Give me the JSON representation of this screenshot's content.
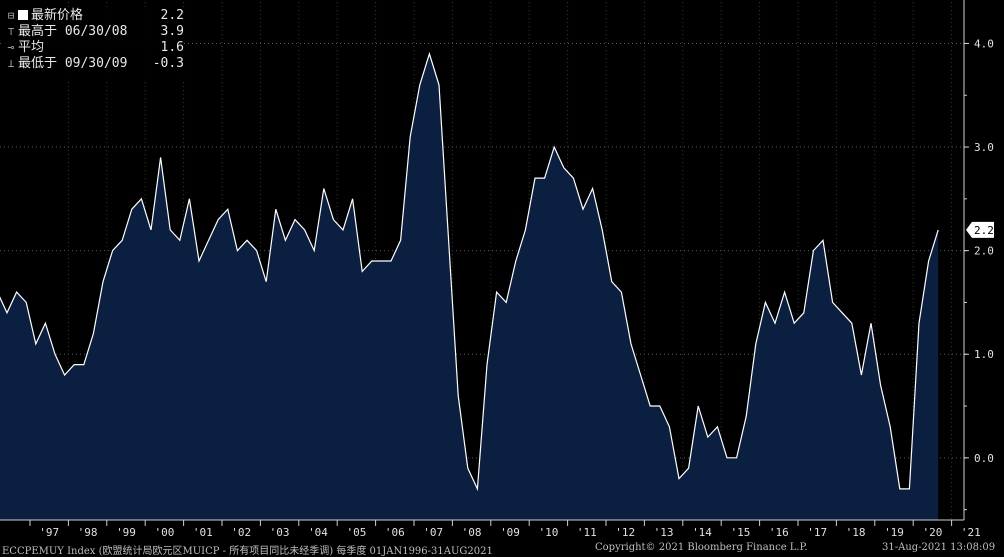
{
  "legend": {
    "last_price_label": "最新价格",
    "last_price_value": "2.2",
    "high_label": "最高于 06/30/08",
    "high_value": "3.9",
    "average_label": "平均",
    "average_value": "1.6",
    "low_label": "最低于 09/30/09",
    "low_value": "-0.3"
  },
  "footer": {
    "ticker": "ECCPEMUY Index (欧盟统计局欧元区MUICP - 所有项目同比未经季调)  每季度 01JAN1996-31AUG2021",
    "copyright": "Copyright© 2021 Bloomberg Finance L.P.",
    "timestamp": "31-Aug-2021 13:08:09"
  },
  "chart_data": {
    "type": "area",
    "series": [
      {
        "values": [
          1.6,
          1.4,
          1.6,
          1.5,
          1.1,
          1.3,
          1.0,
          0.8,
          0.9,
          0.9,
          1.2,
          1.7,
          2.0,
          2.1,
          2.4,
          2.5,
          2.2,
          2.9,
          2.2,
          2.1,
          2.5,
          1.9,
          2.1,
          2.3,
          2.4,
          2.0,
          2.1,
          2.0,
          1.7,
          2.4,
          2.1,
          2.3,
          2.2,
          2.0,
          2.6,
          2.3,
          2.2,
          2.5,
          1.8,
          1.9,
          1.9,
          1.9,
          2.1,
          3.1,
          3.6,
          3.9,
          3.6,
          2.1,
          0.6,
          -0.1,
          -0.3,
          0.9,
          1.6,
          1.5,
          1.9,
          2.2,
          2.7,
          2.7,
          3.0,
          2.8,
          2.7,
          2.4,
          2.6,
          2.2,
          1.7,
          1.6,
          1.1,
          0.8,
          0.5,
          0.5,
          0.3,
          -0.2,
          -0.1,
          0.5,
          0.2,
          0.3,
          0.0,
          0.0,
          0.4,
          1.1,
          1.5,
          1.3,
          1.6,
          1.3,
          1.4,
          2.0,
          2.1,
          1.5,
          1.4,
          1.3,
          0.8,
          1.3,
          0.7,
          0.3,
          -0.3,
          -0.3,
          1.3,
          1.9,
          2.2
        ],
        "color": "#ffffff",
        "fill": "#0b2040"
      }
    ],
    "x_start_year": 1996,
    "x_end_year": 2021,
    "ylim": [
      -0.6,
      4.4
    ],
    "yticks": [
      "4.0",
      "3.0",
      "2.0",
      "1.0",
      "0.0"
    ],
    "ytick_values": [
      4.0,
      3.0,
      2.0,
      1.0,
      0.0
    ],
    "xticks": [
      "'97",
      "'98",
      "'99",
      "'00",
      "'01",
      "'02",
      "'03",
      "'04",
      "'05",
      "'06",
      "'07",
      "'08",
      "'09",
      "'10",
      "'11",
      "'12",
      "'13",
      "'14",
      "'15",
      "'16",
      "'17",
      "'18",
      "'19",
      "'20",
      "'21"
    ],
    "last_value_label": "2.2",
    "last_value": 2.2,
    "grid": true,
    "legend_position": "top-left"
  }
}
